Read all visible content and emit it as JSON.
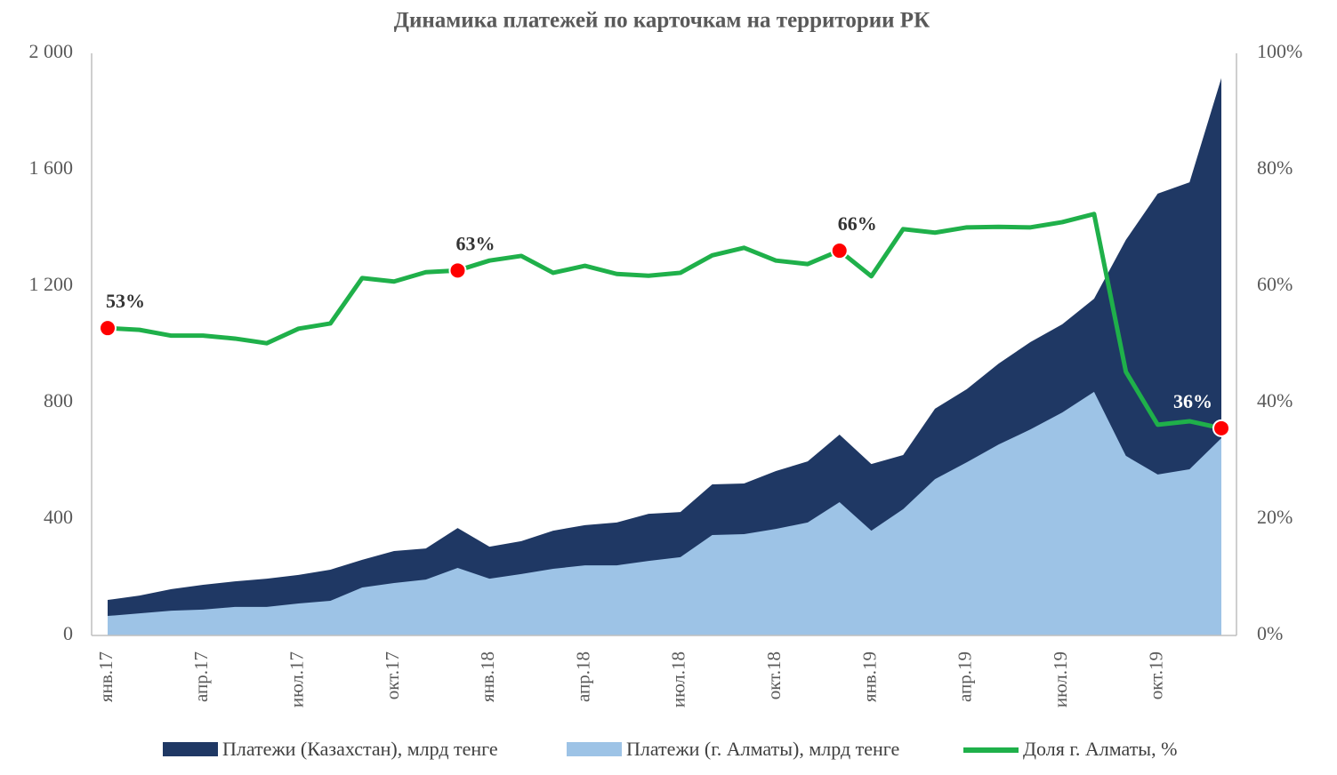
{
  "chart_data": {
    "type": "area-line",
    "title": "Динамика платежей по карточкам на территории РК",
    "categories": [
      "янв.17",
      null,
      null,
      "апр.17",
      null,
      null,
      "июл.17",
      null,
      null,
      "окт.17",
      null,
      null,
      "янв.18",
      null,
      null,
      "апр.18",
      null,
      null,
      "июл.18",
      null,
      null,
      "окт.18",
      null,
      null,
      "янв.19",
      null,
      null,
      "апр.19",
      null,
      null,
      "июл.19",
      null,
      null,
      "окт.19",
      null,
      null
    ],
    "series": [
      {
        "name": "Платежи (Казахстан), млрд тенге",
        "type": "area",
        "color": "#1f3864",
        "values": [
          122,
          137,
          159,
          174,
          186,
          195,
          208,
          226,
          260,
          290,
          299,
          369,
          305,
          324,
          360,
          379,
          388,
          418,
          424,
          519,
          522,
          565,
          598,
          690,
          589,
          620,
          779,
          846,
          934,
          1008,
          1069,
          1157,
          1359,
          1518,
          1557,
          1915
        ]
      },
      {
        "name": "Платежи (г. Алматы), млрд тенге",
        "type": "area",
        "color": "#9dc3e6",
        "values": [
          67,
          76,
          85,
          89,
          98,
          98,
          110,
          119,
          165,
          180,
          192,
          232,
          195,
          211,
          229,
          241,
          241,
          256,
          269,
          345,
          348,
          366,
          388,
          458,
          360,
          434,
          537,
          595,
          656,
          708,
          766,
          837,
          617,
          553,
          571,
          678
        ]
      },
      {
        "name": "Доля г. Алматы, %",
        "type": "line",
        "axis": "y2",
        "color": "#1fb04a",
        "marker_color": "#ff0000",
        "values": [
          52.8,
          52.5,
          51.5,
          51.5,
          51.0,
          50.2,
          52.7,
          53.6,
          61.4,
          60.8,
          62.4,
          62.7,
          64.4,
          65.2,
          62.3,
          63.5,
          62.1,
          61.8,
          62.3,
          65.3,
          66.6,
          64.4,
          63.8,
          66.1,
          61.7,
          69.8,
          69.2,
          70.1,
          70.2,
          70.1,
          71.0,
          72.4,
          45.3,
          36.2,
          36.8,
          35.6
        ],
        "value_labels": [
          "53%",
          null,
          null,
          null,
          null,
          null,
          null,
          null,
          null,
          null,
          null,
          "63%",
          null,
          null,
          null,
          null,
          null,
          null,
          null,
          null,
          null,
          null,
          null,
          "66%",
          null,
          null,
          null,
          null,
          null,
          null,
          null,
          null,
          null,
          null,
          null,
          "36%"
        ],
        "value_label_colors": [
          "#333333",
          null,
          null,
          null,
          null,
          null,
          null,
          null,
          null,
          null,
          null,
          "#333333",
          null,
          null,
          null,
          null,
          null,
          null,
          null,
          null,
          null,
          null,
          null,
          "#333333",
          null,
          null,
          null,
          null,
          null,
          null,
          null,
          null,
          null,
          null,
          null,
          "#ffffff"
        ]
      }
    ],
    "ylim": [
      0,
      2000
    ],
    "yticks": [
      0,
      400,
      800,
      {
        "value": 1200,
        "label": "1 200"
      },
      {
        "value": 1600,
        "label": "1 600"
      },
      {
        "value": 2000,
        "label": "2 000"
      }
    ],
    "y2lim": [
      0,
      100
    ],
    "y2ticks": [
      {
        "value": 0,
        "label": "0%"
      },
      {
        "value": 20,
        "label": "20%"
      },
      {
        "value": 40,
        "label": "40%"
      },
      {
        "value": 60,
        "label": "60%"
      },
      {
        "value": 80,
        "label": "80%"
      },
      {
        "value": 100,
        "label": "100%"
      }
    ],
    "legend": "bottom"
  }
}
